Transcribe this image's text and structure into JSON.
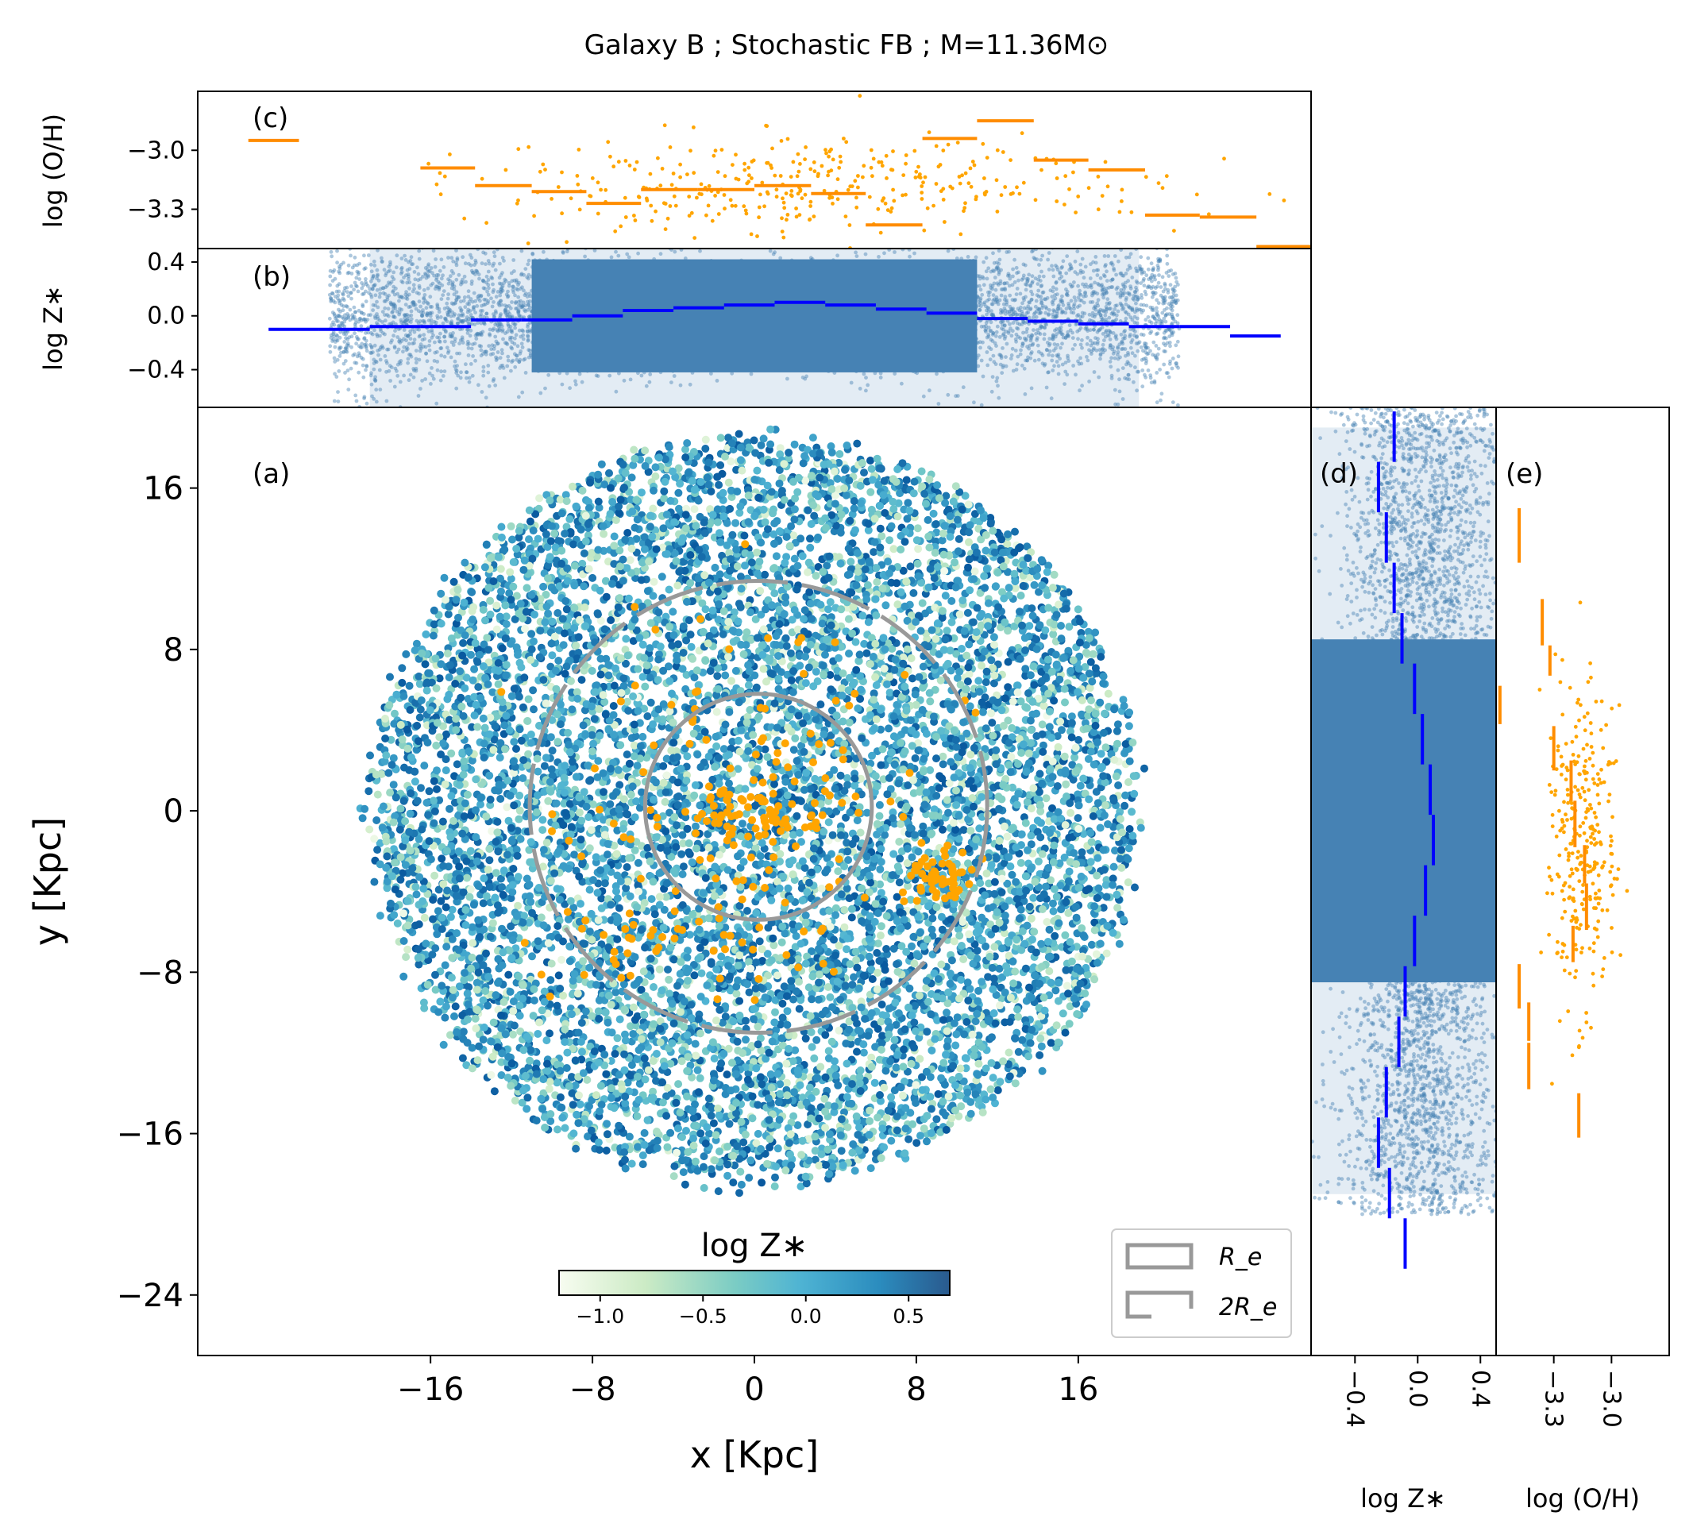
{
  "title": "Galaxy B ; Stochastic FB ; M=11.36M⊙",
  "chart_data": [
    {
      "panel": "(a)",
      "type": "scatter",
      "xlabel": "x [Kpc]",
      "ylabel": "y [Kpc]",
      "xlim": [
        -27.5,
        27.5
      ],
      "ylim": [
        -27,
        20
      ],
      "xticks": [
        -16,
        -8,
        0,
        8,
        16
      ],
      "yticks": [
        16,
        8,
        0,
        -8,
        -16,
        -24
      ],
      "xtick_labels": [
        "−16",
        "−8",
        "0",
        "8",
        "16"
      ],
      "ytick_labels": [
        "16",
        "8",
        "0",
        "−8",
        "−16",
        "−24"
      ],
      "disk": {
        "center": [
          0,
          0
        ],
        "x_radius": 19,
        "y_radius": 18.5,
        "color_range": [
          -1.2,
          0.7
        ]
      },
      "colorbar": {
        "label": "log  Z∗",
        "range": [
          -1.2,
          0.7
        ],
        "ticks": [
          -1.0,
          -0.5,
          0.0,
          0.5
        ],
        "tick_labels": [
          "−1.0",
          "−0.5",
          "0.0",
          "0.5"
        ],
        "colors": [
          "#f7fcf0",
          "#ccebc5",
          "#7bccc4",
          "#4eb3d3",
          "#2b8cbe",
          "#08589e"
        ]
      },
      "ellipses": [
        {
          "name": "R_e",
          "center": [
            0.2,
            0.2
          ],
          "x_radius": 5.6,
          "y_radius": 5.6,
          "style": "solid"
        },
        {
          "name": "2R_e",
          "center": [
            0.2,
            0.2
          ],
          "x_radius": 11.3,
          "y_radius": 11.2,
          "style": "dashed"
        }
      ],
      "gas_clumps": [
        {
          "center": [
            0,
            0
          ],
          "x_spread": 3.0,
          "y_spread": 1.5,
          "count": 70
        },
        {
          "center": [
            9,
            -3.2
          ],
          "x_spread": 1.4,
          "y_spread": 1.0,
          "count": 60
        },
        {
          "center": [
            -6.5,
            -6.5
          ],
          "x_spread": 3.5,
          "y_spread": 2.0,
          "count": 25
        },
        {
          "center": [
            0,
            0
          ],
          "x_spread": 8,
          "y_spread": 8,
          "count": 120
        }
      ],
      "legend": {
        "labels": [
          "R_e",
          "2R_e"
        ],
        "placement": "lower-right"
      },
      "tag": "(a)"
    },
    {
      "panel": "(b)",
      "type": "scatter+step",
      "ylabel": "log Z∗",
      "ylim": [
        -0.68,
        0.5
      ],
      "yticks": [
        0.4,
        0.0,
        -0.4
      ],
      "ytick_labels": [
        "0.4",
        "0.0",
        "−0.4"
      ],
      "step_x_edges": [
        -24,
        -21.5,
        -19,
        -16.5,
        -14,
        -11.5,
        -9,
        -6.5,
        -4,
        -1.5,
        1,
        3.5,
        6,
        8.5,
        11,
        13.5,
        16,
        18.5,
        21,
        23.5
      ],
      "step_values": [
        -0.1,
        -0.1,
        -0.08,
        -0.08,
        -0.03,
        -0.03,
        0.0,
        0.04,
        0.06,
        0.08,
        0.1,
        0.08,
        0.05,
        0.02,
        -0.02,
        -0.04,
        -0.06,
        -0.08,
        -0.08,
        -0.15
      ],
      "tag": "(b)"
    },
    {
      "panel": "(c)",
      "type": "scatter+step",
      "ylabel": "log (O/H)",
      "ylim": [
        -3.5,
        -2.7
      ],
      "yticks": [
        -3.0,
        -3.3
      ],
      "ytick_labels": [
        "−3.0",
        "−3.3"
      ],
      "step_segments": [
        {
          "x": [
            -25,
            -22.5
          ],
          "y": -2.95
        },
        {
          "x": [
            -16.5,
            -13.8
          ],
          "y": -3.09
        },
        {
          "x": [
            -13.8,
            -11.0
          ],
          "y": -3.18
        },
        {
          "x": [
            -11.0,
            -8.3
          ],
          "y": -3.21
        },
        {
          "x": [
            -8.3,
            -5.6
          ],
          "y": -3.27
        },
        {
          "x": [
            -5.6,
            -2.8
          ],
          "y": -3.2
        },
        {
          "x": [
            -2.8,
            0.0
          ],
          "y": -3.2
        },
        {
          "x": [
            0.0,
            2.8
          ],
          "y": -3.18
        },
        {
          "x": [
            2.8,
            5.5
          ],
          "y": -3.22
        },
        {
          "x": [
            5.5,
            8.3
          ],
          "y": -3.38
        },
        {
          "x": [
            8.3,
            11.0
          ],
          "y": -2.94
        },
        {
          "x": [
            11.0,
            13.8
          ],
          "y": -2.85
        },
        {
          "x": [
            13.8,
            16.5
          ],
          "y": -3.05
        },
        {
          "x": [
            16.5,
            19.3
          ],
          "y": -3.1
        },
        {
          "x": [
            19.3,
            22.0
          ],
          "y": -3.33
        },
        {
          "x": [
            22.0,
            24.8
          ],
          "y": -3.34
        },
        {
          "x": [
            24.8,
            27.5
          ],
          "y": -3.49
        }
      ],
      "tag": "(c)"
    },
    {
      "panel": "(d)",
      "type": "scatter+step",
      "xlabel": "log Z∗",
      "xlim": [
        -0.68,
        0.5
      ],
      "xticks": [
        -0.4,
        0.0,
        0.4
      ],
      "xtick_labels": [
        "−0.4",
        "0.0",
        "0.4"
      ],
      "step_y_edges": [
        19.8,
        17.3,
        14.8,
        12.3,
        9.8,
        7.3,
        4.8,
        2.3,
        -0.2,
        -2.7,
        -5.2,
        -7.7,
        -10.2,
        -12.7,
        -15.2,
        -17.7,
        -20.2
      ],
      "step_values": [
        -0.15,
        -0.25,
        -0.2,
        -0.15,
        -0.1,
        -0.02,
        0.03,
        0.08,
        0.1,
        0.05,
        -0.02,
        -0.08,
        -0.12,
        -0.2,
        -0.25,
        -0.18,
        -0.08
      ],
      "tag": "(d)"
    },
    {
      "panel": "(e)",
      "type": "scatter+step",
      "xlabel": "log (O/H)",
      "xlim": [
        -3.6,
        -2.7
      ],
      "xticks": [
        -3.3,
        -3.0
      ],
      "xtick_labels": [
        "−3.3",
        "−3.0"
      ],
      "step_segments": [
        {
          "y": [
            15,
            12.3
          ],
          "x": -3.48
        },
        {
          "y": [
            10.5,
            8.2
          ],
          "x": -3.36
        },
        {
          "y": [
            8.2,
            6.7
          ],
          "x": -3.32
        },
        {
          "y": [
            6.2,
            4.3
          ],
          "x": -3.58
        },
        {
          "y": [
            4.2,
            2.0
          ],
          "x": -3.3
        },
        {
          "y": [
            2.5,
            0.5
          ],
          "x": -3.21
        },
        {
          "y": [
            0.5,
            -1.8
          ],
          "x": -3.19
        },
        {
          "y": [
            -1.7,
            -3.6
          ],
          "x": -3.14
        },
        {
          "y": [
            -3.6,
            -5.9
          ],
          "x": -3.13
        },
        {
          "y": [
            -5.7,
            -7.5
          ],
          "x": -3.2
        },
        {
          "y": [
            -7.6,
            -9.8
          ],
          "x": -3.48
        },
        {
          "y": [
            -9.5,
            -11.4
          ],
          "x": -3.43
        },
        {
          "y": [
            -11.5,
            -13.8
          ],
          "x": -3.43
        },
        {
          "y": [
            -14.0,
            -16.2
          ],
          "x": -3.17
        }
      ],
      "tag": "(e)"
    }
  ]
}
